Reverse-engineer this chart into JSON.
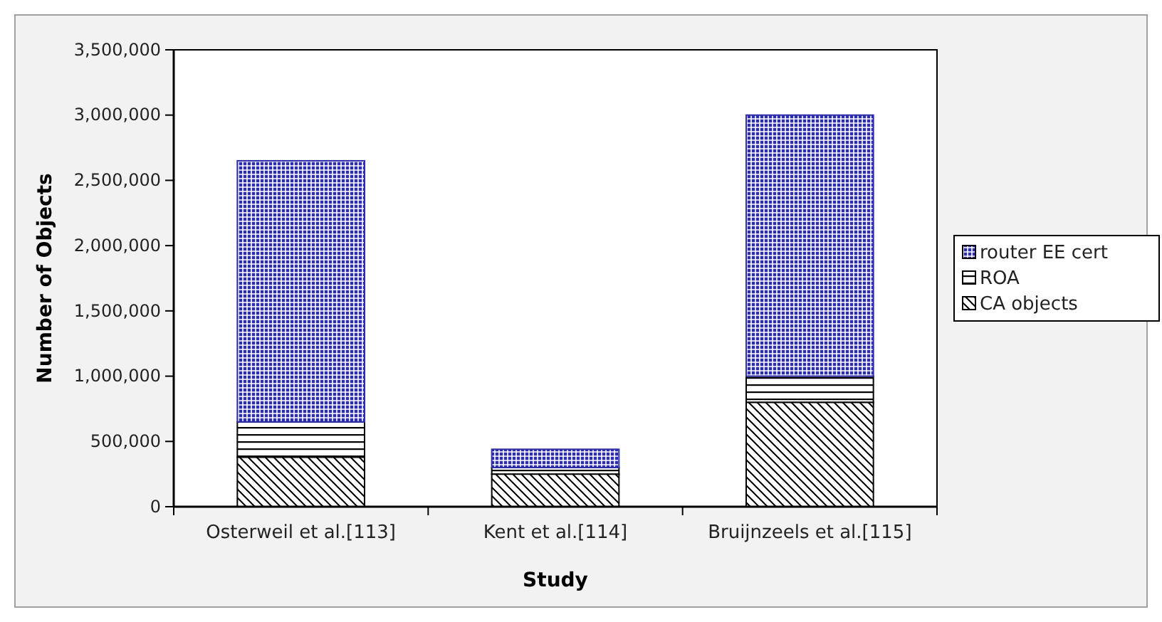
{
  "chart_data": {
    "type": "bar",
    "stacked": true,
    "xlabel": "Study",
    "ylabel": "Number of Objects",
    "categories": [
      "Osterweil et al.[113]",
      "Kent et al.[114]",
      "Bruijnzeels et al.[115]"
    ],
    "series": [
      {
        "name": "CA objects",
        "color": "#000000",
        "values": [
          380000,
          250000,
          800000
        ]
      },
      {
        "name": "ROA",
        "color": "#000000",
        "values": [
          270000,
          50000,
          200000
        ]
      },
      {
        "name": "router EE cert",
        "color": "#2e2ea8",
        "values": [
          2000000,
          140000,
          2000000
        ]
      }
    ],
    "ylim": [
      0,
      3500000
    ],
    "yticks": [
      {
        "value": 0,
        "label": "0"
      },
      {
        "value": 500000,
        "label": "500,000"
      },
      {
        "value": 1000000,
        "label": "1,000,000"
      },
      {
        "value": 1500000,
        "label": "1,500,000"
      },
      {
        "value": 2000000,
        "label": "2,000,000"
      },
      {
        "value": 2500000,
        "label": "2,500,000"
      },
      {
        "value": 3000000,
        "label": "3,000,000"
      },
      {
        "value": 3500000,
        "label": "3,500,000"
      }
    ],
    "grid": false,
    "legend": "right"
  }
}
